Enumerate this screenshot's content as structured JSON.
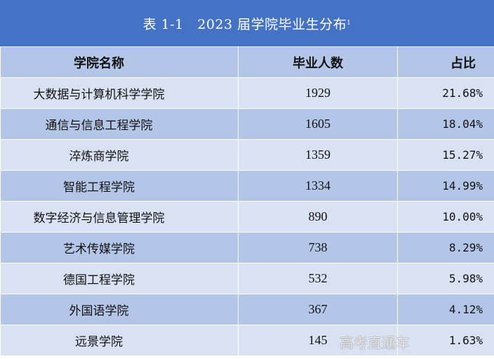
{
  "title": {
    "text": "表 1-1　2023 届学院毕业生分布",
    "footnote": "1"
  },
  "columns": [
    "学院名称",
    "毕业人数",
    "占比"
  ],
  "rows": [
    {
      "name": "大数据与计算机科学学院",
      "count": "1929",
      "pct": "21.68%"
    },
    {
      "name": "通信与信息工程学院",
      "count": "1605",
      "pct": "18.04%"
    },
    {
      "name": "淬炼商学院",
      "count": "1359",
      "pct": "15.27%"
    },
    {
      "name": "智能工程学院",
      "count": "1334",
      "pct": "14.99%"
    },
    {
      "name": "数字经济与信息管理学院",
      "count": "890",
      "pct": "10.00%"
    },
    {
      "name": "艺术传媒学院",
      "count": "738",
      "pct": "8.29%"
    },
    {
      "name": "德国工程学院",
      "count": "532",
      "pct": "5.98%"
    },
    {
      "name": "外国语学院",
      "count": "367",
      "pct": "4.12%"
    },
    {
      "name": "远景学院",
      "count": "145",
      "pct": "1.63%"
    }
  ],
  "watermark": "高考直通车",
  "colors": {
    "title_bg": "#4472c4",
    "row_dark": "#b4c6e7",
    "row_light": "#d9e2f3"
  }
}
